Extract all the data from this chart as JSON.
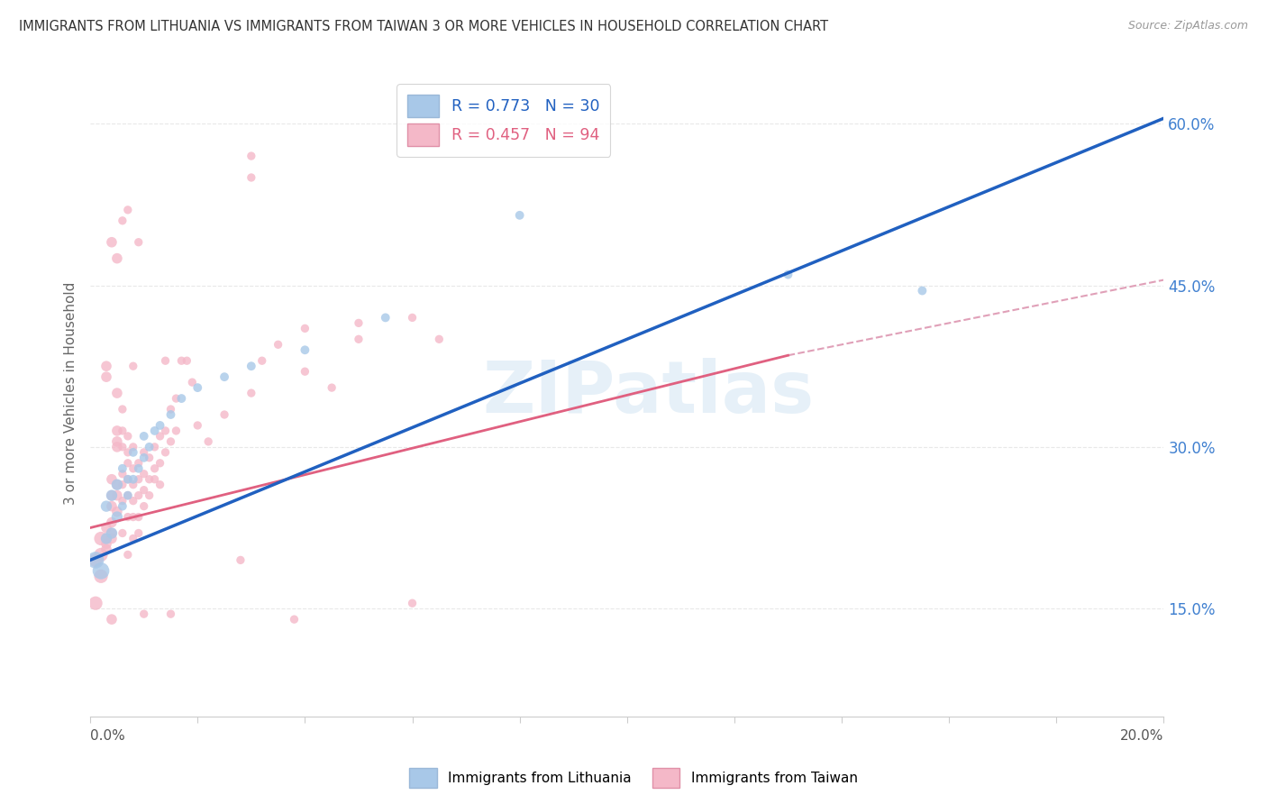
{
  "title": "IMMIGRANTS FROM LITHUANIA VS IMMIGRANTS FROM TAIWAN 3 OR MORE VEHICLES IN HOUSEHOLD CORRELATION CHART",
  "source": "Source: ZipAtlas.com",
  "ylabel": "3 or more Vehicles in Household",
  "ytick_vals": [
    0.15,
    0.3,
    0.45,
    0.6
  ],
  "ytick_labels": [
    "15.0%",
    "30.0%",
    "45.0%",
    "60.0%"
  ],
  "xlim": [
    0.0,
    0.2
  ],
  "ylim": [
    0.05,
    0.65
  ],
  "watermark_text": "ZIPatlas",
  "lithuania_color": "#a8c8e8",
  "taiwan_color": "#f4b8c8",
  "lithuania_line_color": "#2060c0",
  "taiwan_line_color": "#e06080",
  "taiwan_line_dashed_color": "#e0a0b8",
  "right_axis_color": "#4080d0",
  "grid_color": "#e8e8e8",
  "background_color": "#ffffff",
  "lithuania_line": {
    "x0": 0.0,
    "y0": 0.195,
    "x1": 0.2,
    "y1": 0.605
  },
  "taiwan_line_solid": {
    "x0": 0.0,
    "y0": 0.225,
    "x1": 0.13,
    "y1": 0.385
  },
  "taiwan_line_dashed": {
    "x0": 0.13,
    "y0": 0.385,
    "x1": 0.2,
    "y1": 0.455
  },
  "lithuania_scatter": [
    [
      0.001,
      0.195
    ],
    [
      0.002,
      0.185
    ],
    [
      0.003,
      0.215
    ],
    [
      0.003,
      0.245
    ],
    [
      0.004,
      0.22
    ],
    [
      0.004,
      0.255
    ],
    [
      0.005,
      0.235
    ],
    [
      0.005,
      0.265
    ],
    [
      0.006,
      0.245
    ],
    [
      0.006,
      0.28
    ],
    [
      0.007,
      0.255
    ],
    [
      0.007,
      0.27
    ],
    [
      0.008,
      0.27
    ],
    [
      0.008,
      0.295
    ],
    [
      0.009,
      0.28
    ],
    [
      0.01,
      0.29
    ],
    [
      0.01,
      0.31
    ],
    [
      0.011,
      0.3
    ],
    [
      0.012,
      0.315
    ],
    [
      0.013,
      0.32
    ],
    [
      0.015,
      0.33
    ],
    [
      0.017,
      0.345
    ],
    [
      0.02,
      0.355
    ],
    [
      0.025,
      0.365
    ],
    [
      0.03,
      0.375
    ],
    [
      0.04,
      0.39
    ],
    [
      0.055,
      0.42
    ],
    [
      0.08,
      0.515
    ],
    [
      0.13,
      0.46
    ],
    [
      0.155,
      0.445
    ]
  ],
  "taiwan_scatter": [
    [
      0.001,
      0.155
    ],
    [
      0.001,
      0.195
    ],
    [
      0.002,
      0.18
    ],
    [
      0.002,
      0.2
    ],
    [
      0.002,
      0.215
    ],
    [
      0.003,
      0.21
    ],
    [
      0.003,
      0.225
    ],
    [
      0.003,
      0.215
    ],
    [
      0.003,
      0.205
    ],
    [
      0.003,
      0.365
    ],
    [
      0.003,
      0.375
    ],
    [
      0.004,
      0.14
    ],
    [
      0.004,
      0.23
    ],
    [
      0.004,
      0.22
    ],
    [
      0.004,
      0.215
    ],
    [
      0.004,
      0.245
    ],
    [
      0.004,
      0.255
    ],
    [
      0.004,
      0.27
    ],
    [
      0.004,
      0.49
    ],
    [
      0.005,
      0.24
    ],
    [
      0.005,
      0.255
    ],
    [
      0.005,
      0.265
    ],
    [
      0.005,
      0.3
    ],
    [
      0.005,
      0.305
    ],
    [
      0.005,
      0.315
    ],
    [
      0.005,
      0.35
    ],
    [
      0.005,
      0.475
    ],
    [
      0.006,
      0.22
    ],
    [
      0.006,
      0.25
    ],
    [
      0.006,
      0.265
    ],
    [
      0.006,
      0.275
    ],
    [
      0.006,
      0.3
    ],
    [
      0.006,
      0.315
    ],
    [
      0.006,
      0.335
    ],
    [
      0.006,
      0.51
    ],
    [
      0.007,
      0.2
    ],
    [
      0.007,
      0.235
    ],
    [
      0.007,
      0.255
    ],
    [
      0.007,
      0.27
    ],
    [
      0.007,
      0.285
    ],
    [
      0.007,
      0.295
    ],
    [
      0.007,
      0.31
    ],
    [
      0.007,
      0.52
    ],
    [
      0.008,
      0.215
    ],
    [
      0.008,
      0.235
    ],
    [
      0.008,
      0.25
    ],
    [
      0.008,
      0.265
    ],
    [
      0.008,
      0.28
    ],
    [
      0.008,
      0.3
    ],
    [
      0.008,
      0.375
    ],
    [
      0.009,
      0.22
    ],
    [
      0.009,
      0.235
    ],
    [
      0.009,
      0.255
    ],
    [
      0.009,
      0.27
    ],
    [
      0.009,
      0.285
    ],
    [
      0.009,
      0.49
    ],
    [
      0.01,
      0.145
    ],
    [
      0.01,
      0.245
    ],
    [
      0.01,
      0.26
    ],
    [
      0.01,
      0.275
    ],
    [
      0.01,
      0.295
    ],
    [
      0.011,
      0.255
    ],
    [
      0.011,
      0.27
    ],
    [
      0.011,
      0.29
    ],
    [
      0.012,
      0.27
    ],
    [
      0.012,
      0.28
    ],
    [
      0.012,
      0.3
    ],
    [
      0.013,
      0.265
    ],
    [
      0.013,
      0.285
    ],
    [
      0.013,
      0.31
    ],
    [
      0.014,
      0.295
    ],
    [
      0.014,
      0.315
    ],
    [
      0.014,
      0.38
    ],
    [
      0.015,
      0.145
    ],
    [
      0.015,
      0.305
    ],
    [
      0.015,
      0.335
    ],
    [
      0.016,
      0.315
    ],
    [
      0.016,
      0.345
    ],
    [
      0.017,
      0.38
    ],
    [
      0.018,
      0.38
    ],
    [
      0.019,
      0.36
    ],
    [
      0.02,
      0.32
    ],
    [
      0.022,
      0.305
    ],
    [
      0.025,
      0.33
    ],
    [
      0.028,
      0.195
    ],
    [
      0.03,
      0.35
    ],
    [
      0.03,
      0.55
    ],
    [
      0.03,
      0.57
    ],
    [
      0.032,
      0.38
    ],
    [
      0.035,
      0.395
    ],
    [
      0.038,
      0.14
    ],
    [
      0.04,
      0.37
    ],
    [
      0.04,
      0.41
    ],
    [
      0.045,
      0.355
    ],
    [
      0.05,
      0.4
    ],
    [
      0.05,
      0.415
    ],
    [
      0.06,
      0.155
    ],
    [
      0.06,
      0.42
    ],
    [
      0.065,
      0.4
    ]
  ]
}
